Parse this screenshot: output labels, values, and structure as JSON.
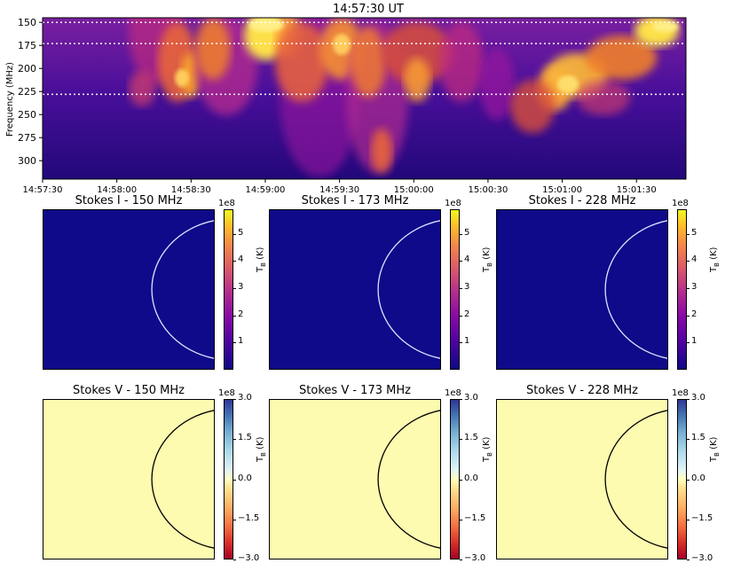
{
  "spectrogram": {
    "title": "14:57:30 UT",
    "ylabel": "Frequency (MHz)",
    "yticks": [
      "150",
      "175",
      "200",
      "225",
      "250",
      "275",
      "300"
    ],
    "xticks": [
      "14:57:30",
      "14:58:00",
      "14:58:30",
      "14:59:00",
      "14:59:30",
      "15:00:00",
      "15:00:30",
      "15:01:00",
      "15:01:30"
    ],
    "marked_frequencies_mhz": [
      150,
      173,
      228
    ],
    "colormap": "plasma"
  },
  "panels_i": [
    {
      "title": "Stokes I - 150 MHz"
    },
    {
      "title": "Stokes I - 173 MHz"
    },
    {
      "title": "Stokes I - 228 MHz"
    }
  ],
  "panels_v": [
    {
      "title": "Stokes V - 150 MHz"
    },
    {
      "title": "Stokes V - 173 MHz"
    },
    {
      "title": "Stokes V - 228 MHz"
    }
  ],
  "colorbar_i": {
    "exponent": "1e8",
    "ticks": [
      "5",
      "4",
      "3",
      "2",
      "1"
    ],
    "tick_values": [
      5,
      4,
      3,
      2,
      1
    ],
    "range": [
      0,
      5.9
    ],
    "label": "T_B (K)",
    "colormap": "plasma"
  },
  "colorbar_v": {
    "exponent": "1e8",
    "ticks": [
      "3.0",
      "1.5",
      "0.0",
      "−1.5",
      "−3.0"
    ],
    "tick_values": [
      3.0,
      1.5,
      0.0,
      -1.5,
      -3.0
    ],
    "range": [
      -3.0,
      3.0
    ],
    "label": "T_B (K)",
    "colormap": "RdYlBu"
  },
  "chart_data": [
    {
      "type": "heatmap",
      "title": "14:57:30 UT",
      "ylabel": "Frequency (MHz)",
      "ylim": [
        320,
        145
      ],
      "xlim": [
        "14:57:30",
        "15:01:50"
      ],
      "hlines_mhz": [
        150,
        173,
        228
      ]
    },
    {
      "type": "heatmap",
      "title": "Stokes I - 150 MHz",
      "colorbar_range": [
        0,
        5.9
      ],
      "colorbar_exponent": "1e8"
    },
    {
      "type": "heatmap",
      "title": "Stokes I - 173 MHz",
      "colorbar_range": [
        0,
        5.9
      ],
      "colorbar_exponent": "1e8"
    },
    {
      "type": "heatmap",
      "title": "Stokes I - 228 MHz",
      "colorbar_range": [
        0,
        5.9
      ],
      "colorbar_exponent": "1e8"
    },
    {
      "type": "heatmap",
      "title": "Stokes V - 150 MHz",
      "colorbar_range": [
        -3.0,
        3.0
      ],
      "colorbar_exponent": "1e8"
    },
    {
      "type": "heatmap",
      "title": "Stokes V - 173 MHz",
      "colorbar_range": [
        -3.0,
        3.0
      ],
      "colorbar_exponent": "1e8"
    },
    {
      "type": "heatmap",
      "title": "Stokes V - 228 MHz",
      "colorbar_range": [
        -3.0,
        3.0
      ],
      "colorbar_exponent": "1e8"
    }
  ]
}
